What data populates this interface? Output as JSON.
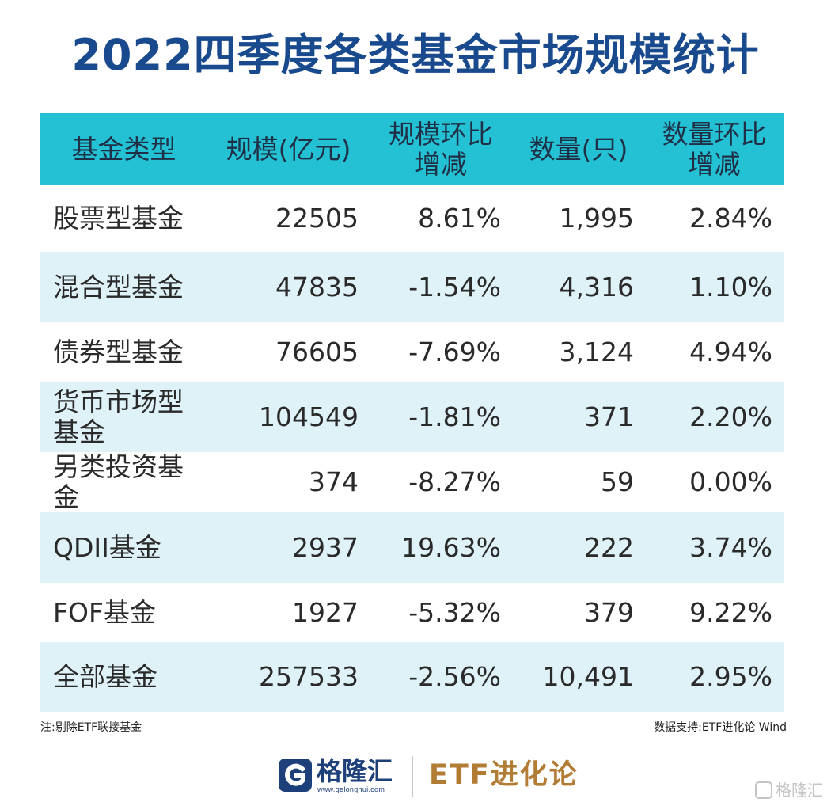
{
  "title": "2022四季度各类基金市场规模统计",
  "table": {
    "headers": [
      "基金类型",
      "规模(亿元)",
      "规模环比\n增减",
      "数量(只)",
      "数量环比\n增减"
    ],
    "header_lines": {
      "h3a": "规模环比",
      "h3b": "增减",
      "h5a": "数量环比",
      "h5b": "增减"
    },
    "rows": [
      {
        "type": "股票型基金",
        "scale": "22505",
        "scale_chg": "8.61%",
        "count": "1,995",
        "count_chg": "2.84%"
      },
      {
        "type": "混合型基金",
        "scale": "47835",
        "scale_chg": "-1.54%",
        "count": "4,316",
        "count_chg": "1.10%"
      },
      {
        "type": "债券型基金",
        "scale": "76605",
        "scale_chg": "-7.69%",
        "count": "3,124",
        "count_chg": "4.94%"
      },
      {
        "type": "货币市场型基金",
        "scale": "104549",
        "scale_chg": "-1.81%",
        "count": "371",
        "count_chg": "2.20%"
      },
      {
        "type": "另类投资基金",
        "scale": "374",
        "scale_chg": "-8.27%",
        "count": "59",
        "count_chg": "0.00%"
      },
      {
        "type": "QDII基金",
        "scale": "2937",
        "scale_chg": "19.63%",
        "count": "222",
        "count_chg": "3.74%"
      },
      {
        "type": "FOF基金",
        "scale": "1927",
        "scale_chg": "-5.32%",
        "count": "379",
        "count_chg": "9.22%"
      },
      {
        "type": "全部基金",
        "scale": "257533",
        "scale_chg": "-2.56%",
        "count": "10,491",
        "count_chg": "2.95%"
      }
    ]
  },
  "footnote": "注:剔除ETF联接基金",
  "source": "数据支持:ETF进化论 Wind",
  "branding": {
    "gelonghui_name": "格隆汇",
    "gelonghui_url": "www.gelonghui.com",
    "etf_brand": "ETF进化论",
    "watermark": "格隆汇"
  },
  "colors": {
    "title": "#1a4a8e",
    "header_bg": "#24c1d4",
    "band_bg": "#def2f7",
    "brand_blue": "#1d3f7a",
    "brand_gold": "#b27c35"
  }
}
